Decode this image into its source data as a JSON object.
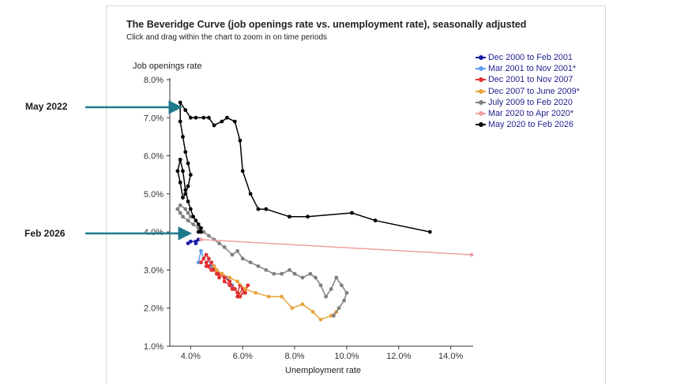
{
  "annotations": {
    "may2022": "May 2022",
    "feb2026": "Feb 2026"
  },
  "colors": {
    "arrow": "#1d7a8c",
    "axis": "#333333",
    "tick_text": "#333333"
  },
  "chart_data": {
    "type": "line",
    "title": "The Beveridge Curve (job openings rate vs. unemployment rate), seasonally adjusted",
    "subtitle": "Click and drag within the chart to zoom in on time periods",
    "xlabel": "Unemployment rate",
    "ylabel": "Job openings rate",
    "xlim": [
      3.2,
      14.8
    ],
    "ylim": [
      1.0,
      8.0
    ],
    "x_ticks": [
      {
        "value": 4,
        "label": "4.0%"
      },
      {
        "value": 6,
        "label": "6.0%"
      },
      {
        "value": 8,
        "label": "8.0%"
      },
      {
        "value": 10,
        "label": "10.0%"
      },
      {
        "value": 12,
        "label": "12.0%"
      },
      {
        "value": 14,
        "label": "14.0%"
      }
    ],
    "y_ticks": [
      {
        "value": 1,
        "label": "1.0%"
      },
      {
        "value": 2,
        "label": "2.0%"
      },
      {
        "value": 3,
        "label": "3.0%"
      },
      {
        "value": 4,
        "label": "4.0%"
      },
      {
        "value": 5,
        "label": "5.0%"
      },
      {
        "value": 6,
        "label": "6.0%"
      },
      {
        "value": 7,
        "label": "7.0%"
      },
      {
        "value": 8,
        "label": "8.0%"
      }
    ],
    "legend_position": "top-right",
    "series": [
      {
        "name": "Dec 2000 to Feb 2001",
        "color": "#1a1aa6",
        "x": [
          3.9,
          4.0,
          4.2,
          4.3,
          4.2
        ],
        "y": [
          3.7,
          3.75,
          3.75,
          3.8,
          3.7
        ]
      },
      {
        "name": "Mar 2001 to Nov 2001*",
        "color": "#5b9bf0",
        "x": [
          4.3,
          4.4,
          4.5,
          4.6,
          4.8,
          5.0,
          5.2,
          5.4,
          5.5,
          5.6
        ],
        "y": [
          3.2,
          3.5,
          3.3,
          3.4,
          3.1,
          3.0,
          2.9,
          2.8,
          2.7,
          2.6
        ]
      },
      {
        "name": "Dec 2001 to Nov 2007",
        "color": "#e03030",
        "x": [
          4.4,
          4.5,
          4.6,
          4.7,
          4.6,
          4.8,
          4.9,
          5.0,
          5.1,
          5.2,
          5.3,
          5.5,
          5.6,
          5.7,
          5.8,
          5.9,
          6.0,
          5.8,
          6.1,
          6.2,
          5.9,
          5.7,
          5.5,
          5.3,
          5.1,
          4.9,
          4.8,
          4.7,
          4.6
        ],
        "y": [
          3.2,
          3.3,
          3.4,
          3.3,
          3.1,
          3.0,
          3.1,
          2.9,
          2.8,
          2.9,
          2.7,
          2.6,
          2.5,
          2.5,
          2.4,
          2.6,
          2.5,
          2.3,
          2.4,
          2.6,
          2.3,
          2.5,
          2.7,
          2.8,
          2.9,
          3.0,
          3.2,
          3.1,
          3.2
        ]
      },
      {
        "name": "Dec 2007 to June 2009*",
        "color": "#e8a33a",
        "x": [
          4.9,
          5.0,
          5.2,
          5.5,
          5.8,
          6.1,
          6.5,
          7.0,
          7.5,
          7.9,
          8.3,
          8.7,
          9.0,
          9.4,
          9.6
        ],
        "y": [
          3.1,
          3.0,
          2.9,
          2.8,
          2.7,
          2.5,
          2.4,
          2.3,
          2.3,
          2.0,
          2.1,
          1.9,
          1.7,
          1.8,
          1.9
        ]
      },
      {
        "name": "July 2009 to Feb 2020",
        "color": "#7f7f7f",
        "x": [
          9.5,
          9.7,
          9.9,
          10.0,
          9.8,
          9.6,
          9.4,
          9.2,
          9.0,
          8.8,
          8.6,
          8.3,
          8.0,
          7.8,
          7.5,
          7.2,
          6.9,
          6.6,
          6.3,
          6.0,
          5.8,
          5.6,
          5.3,
          5.1,
          4.9,
          4.7,
          4.5,
          4.3,
          4.1,
          3.9,
          3.7,
          3.6,
          3.5,
          3.6,
          3.8,
          3.9,
          4.0
        ],
        "y": [
          1.8,
          2.0,
          2.2,
          2.4,
          2.6,
          2.8,
          2.5,
          2.3,
          2.6,
          2.8,
          2.9,
          2.8,
          2.9,
          3.0,
          2.9,
          2.9,
          3.0,
          3.1,
          3.2,
          3.3,
          3.5,
          3.4,
          3.6,
          3.7,
          3.8,
          3.9,
          4.0,
          4.1,
          4.2,
          4.3,
          4.4,
          4.5,
          4.6,
          4.7,
          4.6,
          4.5,
          4.4
        ]
      },
      {
        "name": "Mar 2020 to Apr 2020*",
        "color": "#f0a0a0",
        "x": [
          4.4,
          14.8
        ],
        "y": [
          3.8,
          3.4
        ]
      },
      {
        "name": "May 2020 to Feb 2026",
        "color": "#000000",
        "x": [
          13.2,
          11.1,
          10.2,
          8.5,
          7.8,
          6.9,
          6.6,
          6.3,
          6.0,
          5.9,
          5.7,
          5.4,
          5.2,
          4.9,
          4.7,
          4.5,
          4.2,
          4.0,
          3.8,
          3.6,
          3.6,
          3.7,
          3.8,
          3.9,
          4.0,
          3.9,
          3.8,
          3.7,
          3.6,
          3.5,
          3.6,
          3.7,
          3.8,
          3.9,
          4.0,
          4.1,
          4.2,
          4.3,
          4.4,
          4.3,
          4.4
        ],
        "y": [
          4.0,
          4.3,
          4.5,
          4.4,
          4.4,
          4.6,
          4.6,
          5.0,
          5.6,
          6.4,
          6.9,
          7.0,
          6.9,
          6.8,
          7.0,
          7.0,
          7.0,
          7.0,
          7.2,
          7.4,
          6.9,
          6.5,
          6.1,
          5.8,
          5.5,
          5.2,
          5.0,
          4.9,
          5.3,
          5.6,
          5.9,
          5.6,
          5.1,
          4.8,
          4.6,
          4.4,
          4.3,
          4.2,
          4.1,
          4.0,
          4.0
        ]
      }
    ]
  }
}
